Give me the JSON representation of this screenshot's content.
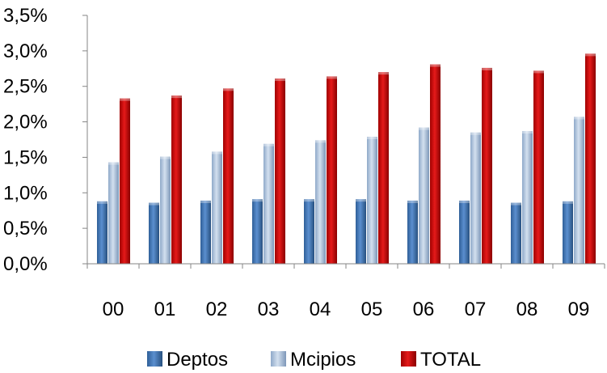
{
  "chart_data": {
    "type": "bar",
    "categories": [
      "00",
      "01",
      "02",
      "03",
      "04",
      "05",
      "06",
      "07",
      "08",
      "09"
    ],
    "series": [
      {
        "name": "Deptos",
        "values": [
          0.88,
          0.86,
          0.89,
          0.91,
          0.91,
          0.91,
          0.89,
          0.89,
          0.86,
          0.88
        ],
        "color": "#4f81bd"
      },
      {
        "name": "Mcipios",
        "values": [
          1.43,
          1.51,
          1.58,
          1.69,
          1.74,
          1.79,
          1.92,
          1.85,
          1.87,
          2.07
        ],
        "color": "#b9cde5"
      },
      {
        "name": "TOTAL",
        "values": [
          2.33,
          2.37,
          2.47,
          2.61,
          2.64,
          2.7,
          2.81,
          2.76,
          2.72,
          2.96
        ],
        "color": "#c00000"
      }
    ],
    "yticks": [
      "0,0%",
      "0,5%",
      "1,0%",
      "1,5%",
      "2,0%",
      "2,5%",
      "3,0%",
      "3,5%"
    ],
    "ylim": [
      0,
      3.5
    ],
    "unit": "%",
    "grid": false,
    "legend": "bottom",
    "title": "",
    "xlabel": "",
    "ylabel": ""
  }
}
